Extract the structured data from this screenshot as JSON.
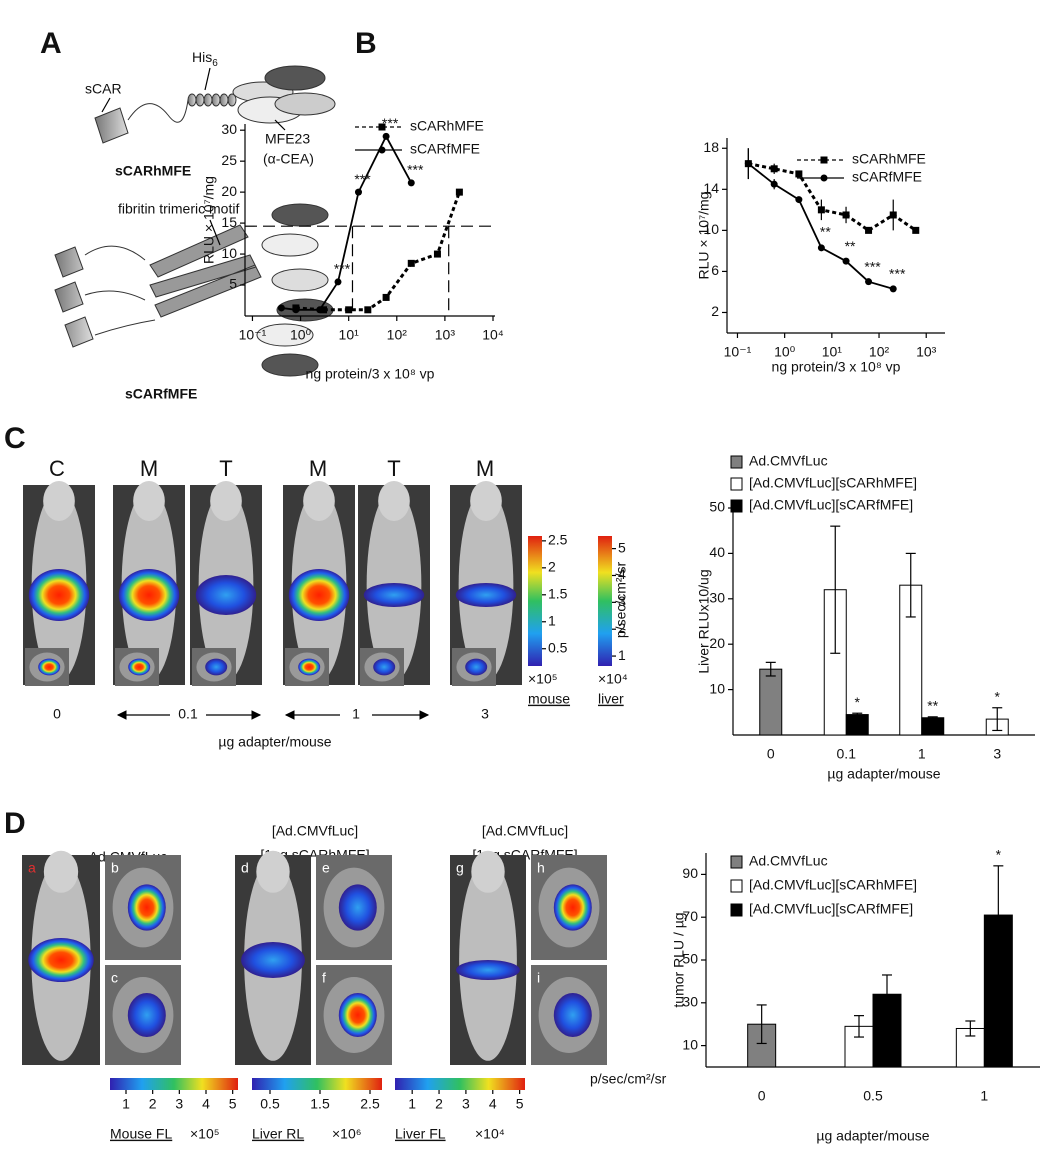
{
  "figure": {
    "panel_labels": [
      "A",
      "B",
      "C",
      "D"
    ],
    "panel_a": {
      "sCAR": "sCAR",
      "his": "His",
      "his_sub": "6",
      "mfe23": "MFE23",
      "acea": "(α-CEA)",
      "name1": "sCARhMFE",
      "motif": "fibritin trimeric motif",
      "name2": "sCARfMFE"
    },
    "panel_c": {
      "column_labels": [
        "C",
        "M",
        "T",
        "M",
        "T",
        "M"
      ],
      "doses": [
        "0",
        "0.1",
        "1",
        "3"
      ],
      "xlabel": "µg adapter/mouse",
      "colorbars": [
        {
          "ticks": [
            0.5,
            1,
            1.5,
            2,
            2.5
          ],
          "lim": [
            0.18,
            2.59
          ],
          "multiplier": "×10⁵",
          "label": "mouse"
        },
        {
          "ticks": [
            1,
            2,
            3,
            4,
            5
          ],
          "lim": [
            0.63,
            5.47
          ],
          "multiplier": "×10⁴",
          "label": "liver"
        }
      ],
      "unit": "p/sec/cm²/sr"
    },
    "panel_d": {
      "group_titles": [
        "Ad.CMVfLuc",
        "[Ad.CMVfLuc]",
        "[1µg sCARhMFE]",
        "[Ad.CMVfLuc]",
        "[1µg sCARfMFE]"
      ],
      "image_labels": [
        "a",
        "b",
        "c",
        "d",
        "e",
        "f",
        "g",
        "h",
        "i"
      ],
      "colorbars": [
        {
          "ticks": [
            1,
            2,
            3,
            4,
            5
          ],
          "lim": [
            0.4,
            5.2
          ],
          "label": "Mouse FL",
          "multiplier": "×10⁵"
        },
        {
          "ticks": [
            0.5,
            1.5,
            2.5
          ],
          "lim": [
            0.14,
            2.74
          ],
          "label": "Liver RL",
          "multiplier": "×10⁶"
        },
        {
          "ticks": [
            1,
            2,
            3,
            4,
            5
          ],
          "lim": [
            0.36,
            5.2
          ],
          "label": "Liver FL",
          "multiplier": "×10⁴"
        }
      ],
      "unit": "p/sec/cm²/sr"
    }
  },
  "chart_data": [
    {
      "type": "line",
      "xscale": "log",
      "ylabel": "RLU × 10⁷/mg",
      "xlabel": "ng protein/3 x 10⁸ vp",
      "xlim": [
        0.07,
        11000
      ],
      "ylim": [
        0,
        31
      ],
      "xticks": [
        {
          "value": 0.1,
          "label": "10⁻¹"
        },
        {
          "value": 1,
          "label": "10⁰"
        },
        {
          "value": 10,
          "label": "10¹"
        },
        {
          "value": 100,
          "label": "10²"
        },
        {
          "value": 1000,
          "label": "10³"
        },
        {
          "value": 10000,
          "label": "10⁴"
        }
      ],
      "yticks": [
        5,
        10,
        15,
        20,
        25,
        30
      ],
      "reference_lines": {
        "y": 14.5,
        "x": [
          12,
          1200
        ]
      },
      "series": [
        {
          "name": "sCARhMFE",
          "color": "#000000",
          "dash": true,
          "marker": "square",
          "x": [
            0.8,
            3,
            10,
            25,
            60,
            200,
            700,
            2000
          ],
          "values": [
            1.3,
            1,
            1,
            1,
            3,
            8.5,
            10,
            20
          ]
        },
        {
          "name": "sCARfMFE",
          "color": "#000000",
          "dash": false,
          "marker": "circle",
          "x": [
            0.4,
            0.8,
            2.5,
            6,
            16,
            60,
            200
          ],
          "values": [
            1.3,
            1,
            1,
            5.5,
            20,
            29,
            21.5
          ],
          "significance": [
            null,
            null,
            null,
            "***",
            "***",
            "***",
            "***"
          ]
        }
      ]
    },
    {
      "type": "line",
      "xscale": "log",
      "ylabel": "RLU × 10⁷/mg",
      "xlabel": "ng protein/3 x 10⁸ vp",
      "xlim": [
        0.06,
        2500
      ],
      "ylim": [
        0,
        19
      ],
      "xticks": [
        {
          "value": 0.1,
          "label": "10⁻¹"
        },
        {
          "value": 1,
          "label": "10⁰"
        },
        {
          "value": 10,
          "label": "10¹"
        },
        {
          "value": 100,
          "label": "10²"
        },
        {
          "value": 1000,
          "label": "10³"
        }
      ],
      "yticks": [
        2,
        6,
        10,
        14,
        18
      ],
      "series": [
        {
          "name": "sCARhMFE",
          "color": "#000000",
          "dash": true,
          "marker": "square",
          "x": [
            0.17,
            0.6,
            2,
            6,
            20,
            60,
            200,
            600
          ],
          "values": [
            16.5,
            16,
            15.5,
            12,
            11.5,
            10,
            11.5,
            10
          ],
          "errors": [
            1.5,
            0.5,
            0.3,
            1,
            0.8,
            0.3,
            1.5,
            0.3
          ]
        },
        {
          "name": "sCARfMFE",
          "color": "#000000",
          "dash": false,
          "marker": "circle",
          "x": [
            0.17,
            0.6,
            2,
            6,
            20,
            60,
            200
          ],
          "values": [
            16.5,
            14.5,
            13,
            8.3,
            7,
            5,
            4.3
          ],
          "errors": [
            1.5,
            0.5,
            0.2,
            0.3,
            0.2,
            0.2,
            0.2
          ],
          "significance": [
            null,
            null,
            null,
            "**",
            "**",
            "***",
            "***"
          ]
        }
      ]
    },
    {
      "type": "bar",
      "ylabel": "Liver RLUx10/ug",
      "xlabel": "µg adapter/mouse",
      "categories": [
        "0",
        "0.1",
        "1",
        "3"
      ],
      "ylim": [
        0,
        50
      ],
      "yticks": [
        10,
        20,
        30,
        40,
        50
      ],
      "series": [
        {
          "name": "Ad.CMVfLuc",
          "color": "#808080",
          "values": [
            14.5,
            null,
            null,
            null
          ],
          "errors": [
            1.5,
            null,
            null,
            null
          ]
        },
        {
          "name": "[Ad.CMVfLuc][sCARhMFE]",
          "color": "#ffffff",
          "values": [
            null,
            32,
            33,
            3.5
          ],
          "errors": [
            null,
            14,
            7,
            2.5
          ],
          "significance": [
            null,
            null,
            null,
            "*"
          ]
        },
        {
          "name": "[Ad.CMVfLuc][sCARfMFE]",
          "color": "#000000",
          "values": [
            null,
            4.5,
            3.8,
            null
          ],
          "errors": [
            null,
            0.3,
            0.2,
            null
          ],
          "significance": [
            null,
            "*",
            "**",
            null
          ]
        }
      ]
    },
    {
      "type": "bar",
      "ylabel": "tumor RLU / µg",
      "xlabel": "µg adapter/mouse",
      "categories": [
        "0",
        "0.5",
        "1"
      ],
      "ylim": [
        0,
        100
      ],
      "yticks": [
        10,
        30,
        50,
        70,
        90
      ],
      "series": [
        {
          "name": "Ad.CMVfLuc",
          "color": "#808080",
          "values": [
            20,
            null,
            null
          ],
          "errors": [
            9,
            null,
            null
          ]
        },
        {
          "name": "[Ad.CMVfLuc][sCARhMFE]",
          "color": "#ffffff",
          "values": [
            null,
            19,
            18
          ],
          "errors": [
            null,
            5,
            3.5
          ]
        },
        {
          "name": "[Ad.CMVfLuc][sCARfMFE]",
          "color": "#000000",
          "values": [
            null,
            34,
            71
          ],
          "errors": [
            null,
            9,
            23
          ],
          "significance": [
            null,
            null,
            "*"
          ]
        }
      ]
    }
  ]
}
